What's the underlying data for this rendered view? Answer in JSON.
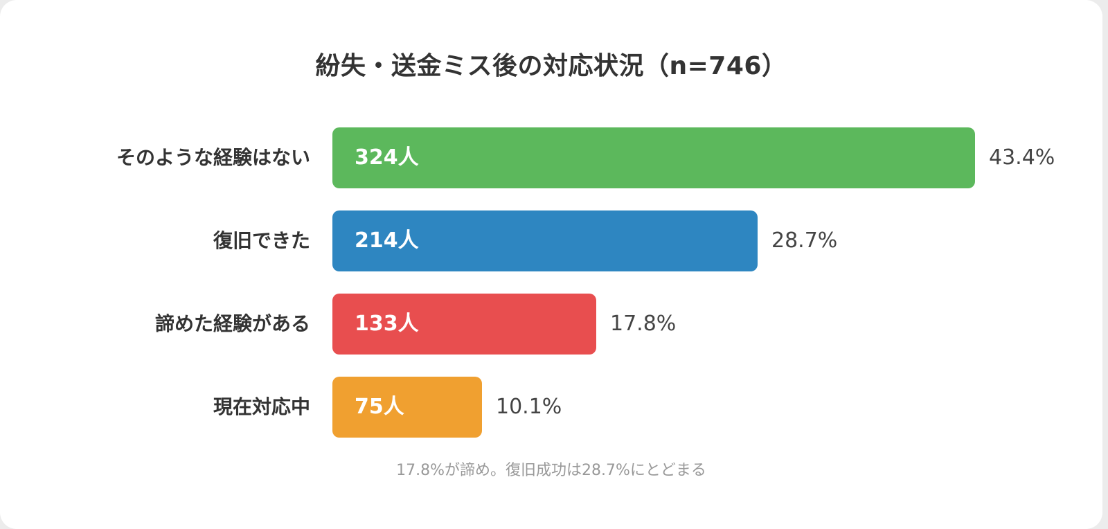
{
  "chart_data": {
    "type": "bar",
    "orientation": "horizontal",
    "title": "紛失・送金ミス後の対応状況（n=746）",
    "categories": [
      "そのような経験はない",
      "復旧できた",
      "諦めた経験がある",
      "現在対応中"
    ],
    "counts": [
      324,
      214,
      133,
      75
    ],
    "count_labels": [
      "324人",
      "214人",
      "133人",
      "75人"
    ],
    "values": [
      43.4,
      28.7,
      17.8,
      10.1
    ],
    "value_labels": [
      "43.4%",
      "28.7%",
      "17.8%",
      "10.1%"
    ],
    "colors": [
      "#5cb85c",
      "#2e86c1",
      "#e84e4f",
      "#f0a030"
    ],
    "xlim": [
      0,
      43.4
    ],
    "grid": false,
    "legend": "none",
    "footnote": "17.8%が諦め。復旧成功は28.7%にとどまる"
  }
}
